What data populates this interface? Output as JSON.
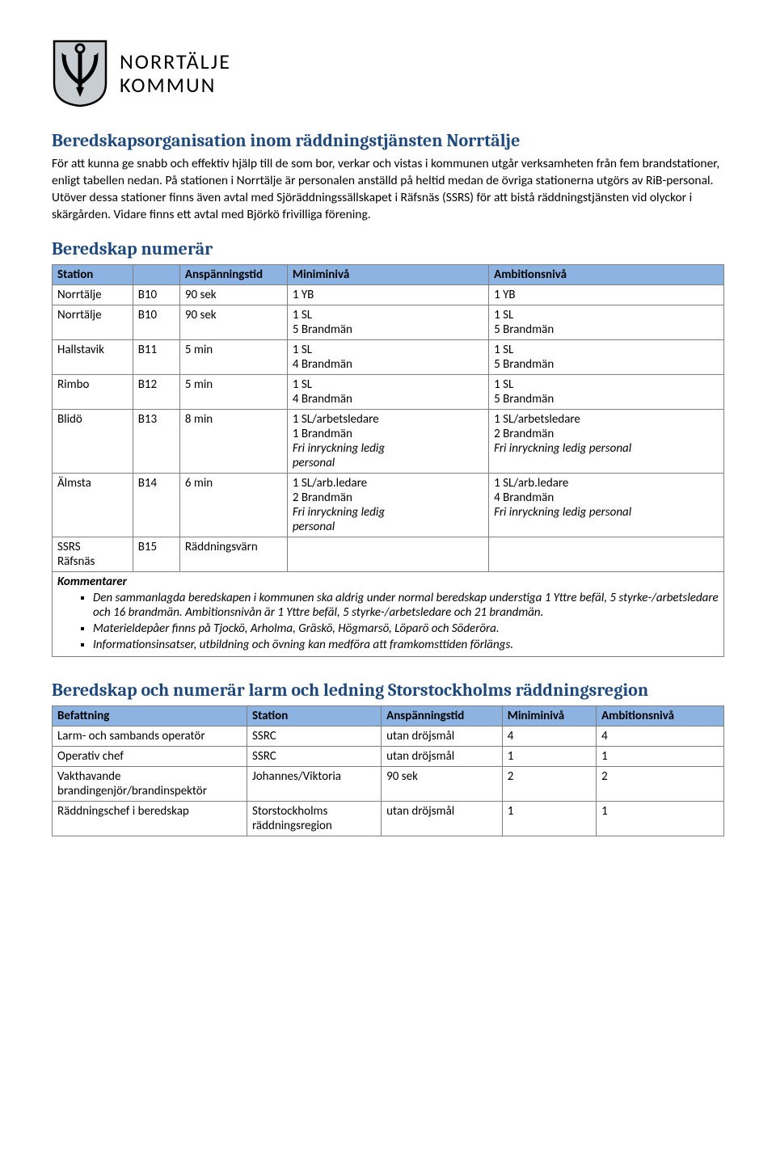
{
  "logo": {
    "line1": "NORRTÄLJE",
    "line2": "KOMMUN"
  },
  "heading1": "Beredskapsorganisation inom räddningstjänsten Norrtälje",
  "intro": "För att kunna ge snabb och effektiv hjälp till de som bor, verkar och vistas i kommunen utgår verksamheten från fem brandstationer, enligt tabellen nedan. På stationen i Norrtälje är personalen anställd på heltid medan de övriga stationerna utgörs av RiB-personal. Utöver dessa stationer finns även avtal med Sjöräddningssällskapet i Räfsnäs (SSRS) för att bistå räddningstjänsten vid olyckor i skärgården. Vidare finns ett avtal med Björkö frivilliga förening.",
  "heading2": "Beredskap numerär",
  "table1": {
    "headers": [
      "Station",
      "",
      "Anspänningstid",
      "Miniminivå",
      "Ambitionsnivå"
    ],
    "rows": [
      {
        "c1": "Norrtälje",
        "c2": "B10",
        "c3": "90 sek",
        "c4": [
          "1 YB"
        ],
        "c5": [
          "1 YB"
        ]
      },
      {
        "c1": "Norrtälje",
        "c2": "B10",
        "c3": "90 sek",
        "c4": [
          "1 SL",
          "5 Brandmän"
        ],
        "c5": [
          "1 SL",
          "5 Brandmän"
        ]
      },
      {
        "c1": "Hallstavik",
        "c2": "B11",
        "c3": "5 min",
        "c4": [
          "1 SL",
          "4 Brandmän"
        ],
        "c5": [
          "1 SL",
          "5 Brandmän"
        ]
      },
      {
        "c1": "Rimbo",
        "c2": "B12",
        "c3": "5 min",
        "c4": [
          "1 SL",
          "4 Brandmän"
        ],
        "c5": [
          "1 SL",
          "5 Brandmän"
        ]
      },
      {
        "c1": "Blidö",
        "c2": "B13",
        "c3": "8 min",
        "c4": [
          "1 SL/arbetsledare",
          "1 Brandmän"
        ],
        "c4_italic": [
          "Fri inryckning ledig",
          "personal"
        ],
        "c5": [
          "1 SL/arbetsledare",
          "2 Brandmän"
        ],
        "c5_italic": [
          "Fri inryckning ledig personal"
        ]
      },
      {
        "c1": "Älmsta",
        "c2": "B14",
        "c3": "6 min",
        "c4": [
          "1 SL/arb.ledare",
          "2 Brandmän"
        ],
        "c4_italic": [
          "Fri inryckning ledig",
          "personal"
        ],
        "c5": [
          "1 SL/arb.ledare",
          "4 Brandmän"
        ],
        "c5_italic": [
          "Fri inryckning ledig personal"
        ]
      },
      {
        "c1": "SSRS\nRäfsnäs",
        "c2": "B15",
        "c3": "Räddningsvärn",
        "c4": [],
        "c5": []
      }
    ],
    "kommentar_label": "Kommentarer",
    "kommentarer": [
      "Den sammanlagda beredskapen i kommunen ska aldrig under normal beredskap understiga 1 Yttre befäl, 5 styrke-/arbetsledare och 16 brandmän. Ambitionsnivån är 1 Yttre befäl, 5 styrke-/arbetsledare och 21 brandmän.",
      "Materieldepåer finns på Tjockö, Arholma, Gräskö, Högmarsö, Löparö och Söderöra.",
      "Informationsinsatser, utbildning och övning kan medföra att framkomsttiden förlängs."
    ]
  },
  "heading3": "Beredskap och numerär larm och ledning Storstockholms räddningsregion",
  "table2": {
    "headers": [
      "Befattning",
      "Station",
      "Anspänningstid",
      "Miniminivå",
      "Ambitionsnivå"
    ],
    "rows": [
      [
        "Larm- och sambands operatör",
        "SSRC",
        "utan dröjsmål",
        "4",
        "4"
      ],
      [
        "Operativ chef",
        "SSRC",
        "utan dröjsmål",
        "1",
        "1"
      ],
      [
        "Vakthavande brandingenjör/brandinspektör",
        "Johannes/Viktoria",
        "90 sek",
        "2",
        "2"
      ],
      [
        "Räddningschef i beredskap",
        "Storstockholms räddningsregion",
        "utan dröjsmål",
        "1",
        "1"
      ]
    ]
  },
  "colors": {
    "heading": "#1f497d",
    "table_header_bg": "#8db3e2",
    "border": "#7f7f7f"
  }
}
